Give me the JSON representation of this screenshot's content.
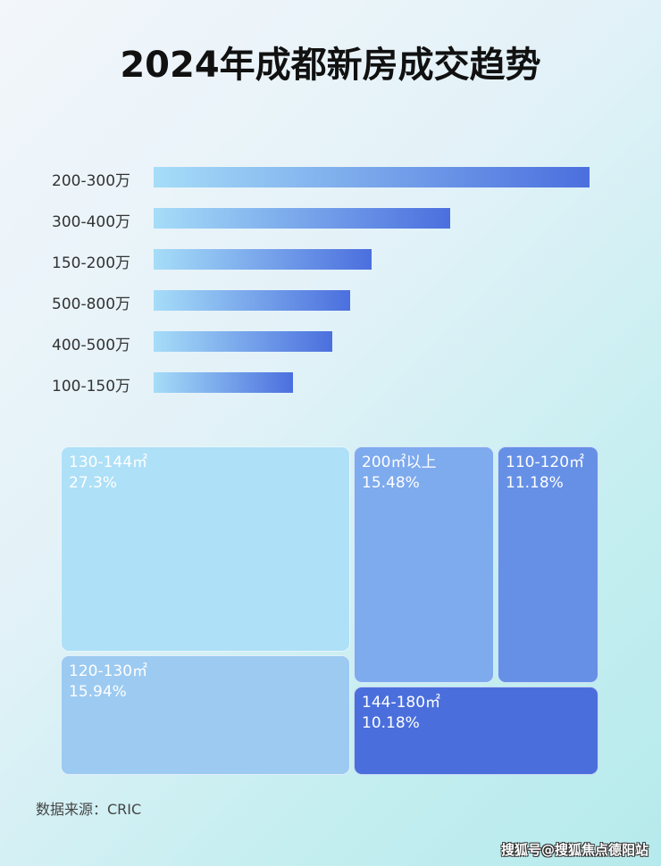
{
  "chart_data": [
    {
      "type": "bar",
      "title": "2024年成都新房成交趋势",
      "orientation": "horizontal",
      "categories": [
        "200-300万",
        "300-400万",
        "150-200万",
        "500-800万",
        "400-500万",
        "100-150万"
      ],
      "values": [
        100,
        68,
        50,
        45,
        41,
        32
      ],
      "note_units": "relative length, no axis shown"
    },
    {
      "type": "treemap",
      "items": [
        {
          "label": "130-144㎡",
          "value": "27.3%",
          "color": "#aee0f7"
        },
        {
          "label": "120-130㎡",
          "value": "15.94%",
          "color": "#9ccaf1"
        },
        {
          "label": "200㎡以上",
          "value": "15.48%",
          "color": "#7eaaee"
        },
        {
          "label": "110-120㎡",
          "value": "11.18%",
          "color": "#6690e6"
        },
        {
          "label": "144-180㎡",
          "value": "10.18%",
          "color": "#4a6fdc"
        }
      ]
    }
  ],
  "source": "数据来源：CRIC",
  "watermark": "搜狐号@搜狐焦点德阳站"
}
